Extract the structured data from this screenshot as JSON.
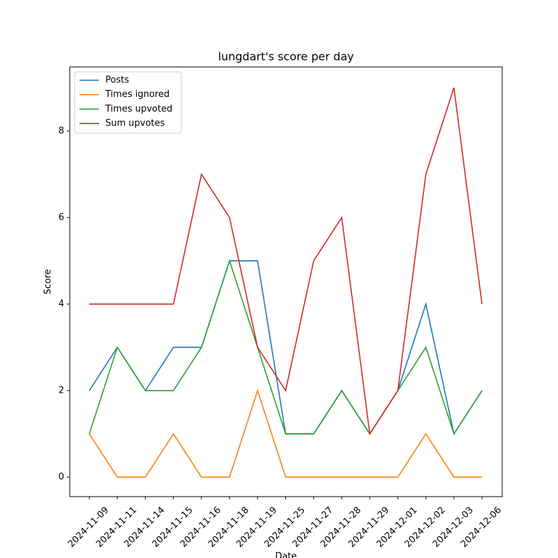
{
  "chart_data": {
    "type": "line",
    "title": "lungdart's score per day",
    "xlabel": "Date",
    "ylabel": "Score",
    "categories": [
      "2024-11-09",
      "2024-11-11",
      "2024-11-14",
      "2024-11-15",
      "2024-11-16",
      "2024-11-18",
      "2024-11-19",
      "2024-11-25",
      "2024-11-27",
      "2024-11-28",
      "2024-11-29",
      "2024-12-01",
      "2024-12-02",
      "2024-12-03",
      "2024-12-06"
    ],
    "series": [
      {
        "name": "Posts",
        "color": "#1f77b4",
        "values": [
          2,
          3,
          2,
          3,
          3,
          5,
          5,
          1,
          1,
          2,
          1,
          2,
          4,
          1,
          2
        ]
      },
      {
        "name": "Times ignored",
        "color": "#ff7f0e",
        "values": [
          1,
          0,
          0,
          1,
          0,
          0,
          2,
          0,
          0,
          0,
          0,
          0,
          1,
          0,
          0
        ]
      },
      {
        "name": "Times upvoted",
        "color": "#2ca02c",
        "values": [
          1,
          3,
          2,
          2,
          3,
          5,
          3,
          1,
          1,
          2,
          1,
          2,
          3,
          1,
          2
        ]
      },
      {
        "name": "Sum upvotes",
        "color": "#d62728",
        "values": [
          4,
          4,
          4,
          4,
          7,
          6,
          3,
          2,
          5,
          6,
          1,
          2,
          7,
          9,
          4
        ]
      }
    ],
    "ylim": [
      -0.45,
      9.48
    ],
    "yticks": [
      0,
      2,
      4,
      6,
      8
    ],
    "legend": "upper left"
  }
}
